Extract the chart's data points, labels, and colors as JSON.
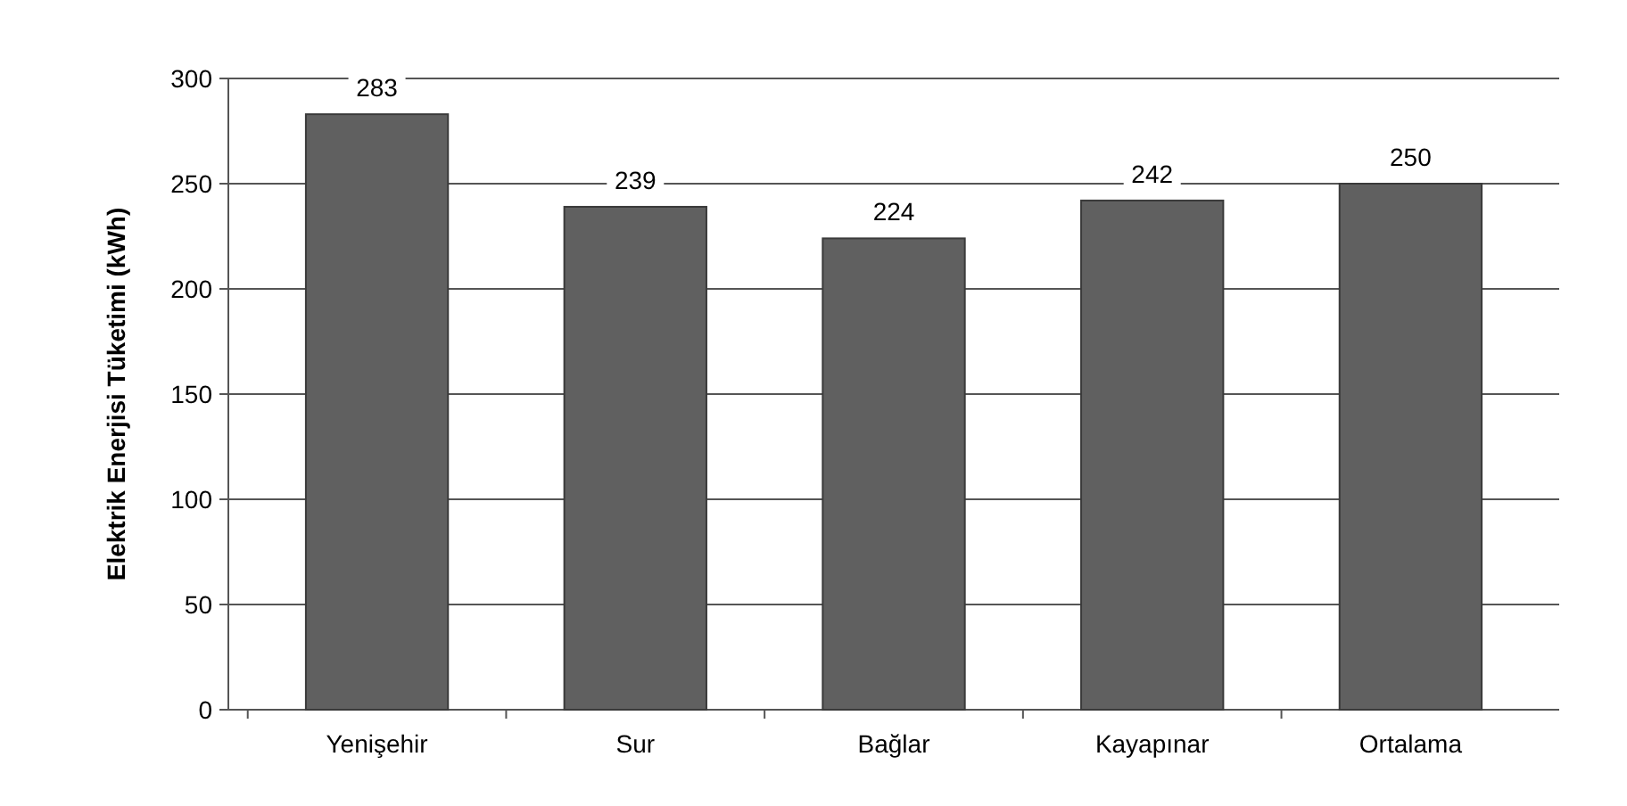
{
  "chart_data": {
    "type": "bar",
    "ylabel": "Elektrik Enerjisi Tüketimi (kWh)",
    "categories": [
      "Yenişehir",
      "Sur",
      "Bağlar",
      "Kayapınar",
      "Ortalama"
    ],
    "values": [
      283,
      239,
      224,
      242,
      250
    ],
    "color": "#606060",
    "ylim": [
      0,
      300
    ],
    "yticks": [
      0,
      50,
      100,
      150,
      200,
      250,
      300
    ],
    "grid": "y",
    "data_labels": true
  }
}
